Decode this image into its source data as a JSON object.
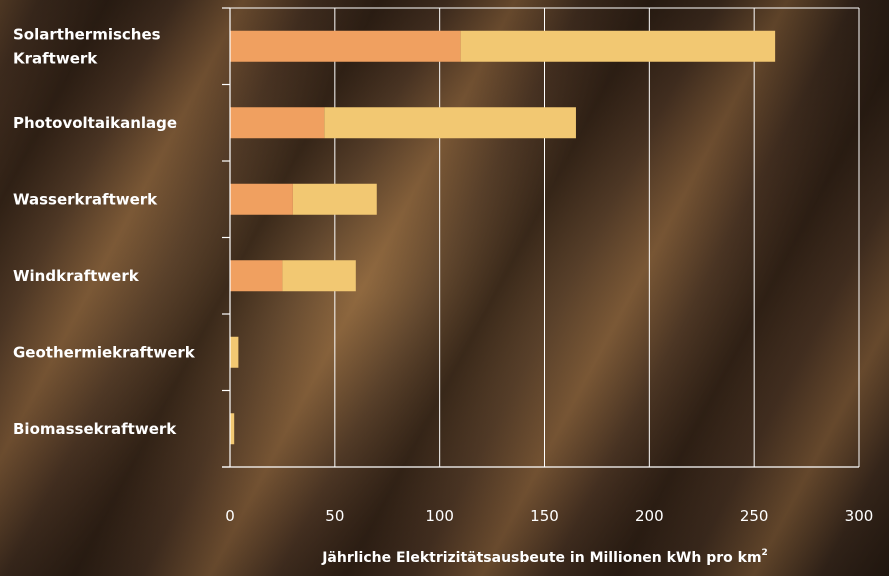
{
  "chart_data": {
    "type": "bar",
    "orientation": "horizontal",
    "stacked": true,
    "categories": [
      [
        "Solarthermisches",
        "Kraftwerk"
      ],
      [
        "Photovoltaikanlage"
      ],
      [
        "Wasserkraftwerk"
      ],
      [
        "Windkraftwerk"
      ],
      [
        "Geothermiekraftwerk"
      ],
      [
        "Biomassekraftwerk"
      ]
    ],
    "series": [
      {
        "values": [
          110,
          45,
          30,
          25,
          0,
          0
        ],
        "color": "#f0a060"
      },
      {
        "values": [
          150,
          120,
          40,
          35,
          4,
          2
        ],
        "color": "#f2c872"
      }
    ],
    "xlim": [
      0,
      300
    ],
    "xticks": [
      0,
      50,
      100,
      150,
      200,
      250,
      300
    ],
    "xlabel": "Jährliche Elektrizitätsausbeute in Millionen kWh pro km",
    "xlabel_superscript": "2",
    "grid": "vertical",
    "axis_color": "#ffffff"
  }
}
